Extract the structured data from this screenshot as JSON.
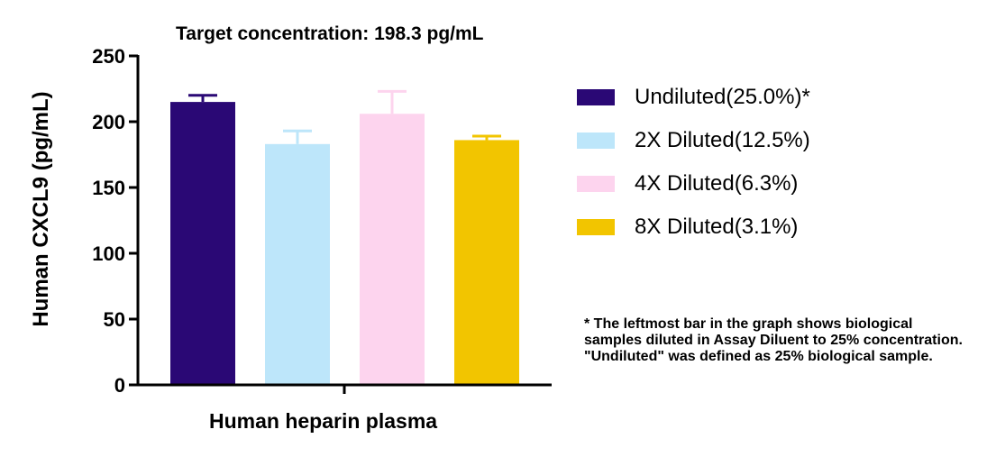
{
  "chart_data": {
    "type": "bar",
    "title": "Target concentration: 198.3 pg/mL",
    "xlabel": "Human heparin plasma",
    "ylabel": "Human CXCL9 (pg/mL)",
    "ylim": [
      0,
      250
    ],
    "yticks": [
      "0",
      "50",
      "100",
      "150",
      "200",
      "250"
    ],
    "grid": false,
    "legend_position": "right",
    "series": [
      {
        "name": "Undiluted(25.0%)*",
        "value": 215,
        "error": 5,
        "color": "#2a0875"
      },
      {
        "name": "2X Diluted(12.5%)",
        "value": 183,
        "error": 10,
        "color": "#bde6fa"
      },
      {
        "name": "4X Diluted(6.3%)",
        "value": 206,
        "error": 17,
        "color": "#fdd4ee"
      },
      {
        "name": "8X Diluted(3.1%)",
        "value": 186,
        "error": 3,
        "color": "#f2c500"
      }
    ]
  },
  "footnote": "* The leftmost bar in the graph shows biological samples diluted in Assay Diluent to 25% concentration. \"Undiluted\" was defined as 25% biological sample."
}
